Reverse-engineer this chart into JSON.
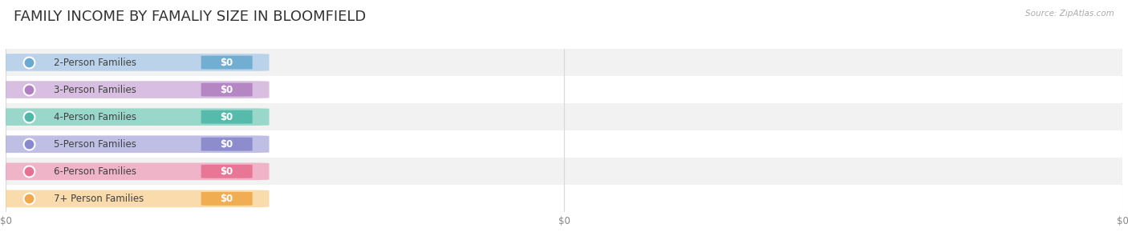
{
  "title": "FAMILY INCOME BY FAMALIY SIZE IN BLOOMFIELD",
  "source": "Source: ZipAtlas.com",
  "categories": [
    "2-Person Families",
    "3-Person Families",
    "4-Person Families",
    "5-Person Families",
    "6-Person Families",
    "7+ Person Families"
  ],
  "values": [
    0,
    0,
    0,
    0,
    0,
    0
  ],
  "bar_colors": [
    "#a8c8e8",
    "#ccaad8",
    "#7dcfbf",
    "#aaaade",
    "#f0a0bc",
    "#f8d090"
  ],
  "dot_colors": [
    "#6aaad0",
    "#b080c0",
    "#50b8a8",
    "#8888cc",
    "#e87090",
    "#f0a848"
  ],
  "bg_color": "#ffffff",
  "row_bg_odd": "#f2f2f2",
  "row_bg_even": "#ffffff",
  "title_fontsize": 13,
  "label_fontsize": 8.5,
  "value_fontsize": 8.5,
  "source_fontsize": 7.5
}
